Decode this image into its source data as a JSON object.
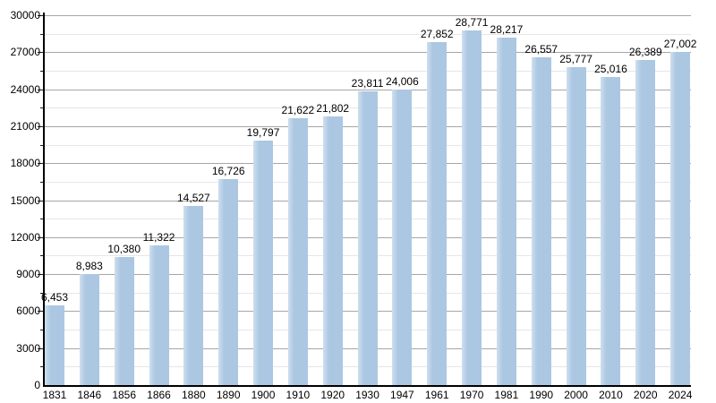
{
  "chart_data": {
    "type": "bar",
    "title": "",
    "xlabel": "",
    "ylabel": "",
    "categories": [
      "1831",
      "1846",
      "1856",
      "1866",
      "1880",
      "1890",
      "1900",
      "1910",
      "1920",
      "1930",
      "1947",
      "1961",
      "1970",
      "1981",
      "1990",
      "2000",
      "2010",
      "2020",
      "2024"
    ],
    "values": [
      6453,
      8983,
      10380,
      11322,
      14527,
      16726,
      19797,
      21622,
      21802,
      23811,
      24006,
      27852,
      28771,
      28217,
      26557,
      25777,
      25016,
      26389,
      27002
    ],
    "value_labels": [
      "6,453",
      "8,983",
      "10,380",
      "11,322",
      "14,527",
      "16,726",
      "19,797",
      "21,622",
      "21,802",
      "23,811",
      "24,006",
      "27,852",
      "28,771",
      "28,217",
      "26,557",
      "25,777",
      "25,016",
      "26,389",
      "27,002"
    ],
    "y_tick_labels": [
      "0",
      "3000",
      "6000",
      "9000",
      "12000",
      "15000",
      "18000",
      "21000",
      "24000",
      "27000",
      "30000"
    ],
    "ylim": [
      0,
      30000
    ],
    "y_major_step": 3000,
    "y_minor_step": 1500,
    "grid": true,
    "legend_position": "none",
    "colors": {
      "bar_fill": "#abc7e2",
      "bar_highlight": "#cfdfee",
      "grid_major": "#a6a6a6",
      "grid_minor": "#e6e6e6",
      "axis": "#000000",
      "text": "#000000",
      "background": "#ffffff"
    }
  }
}
